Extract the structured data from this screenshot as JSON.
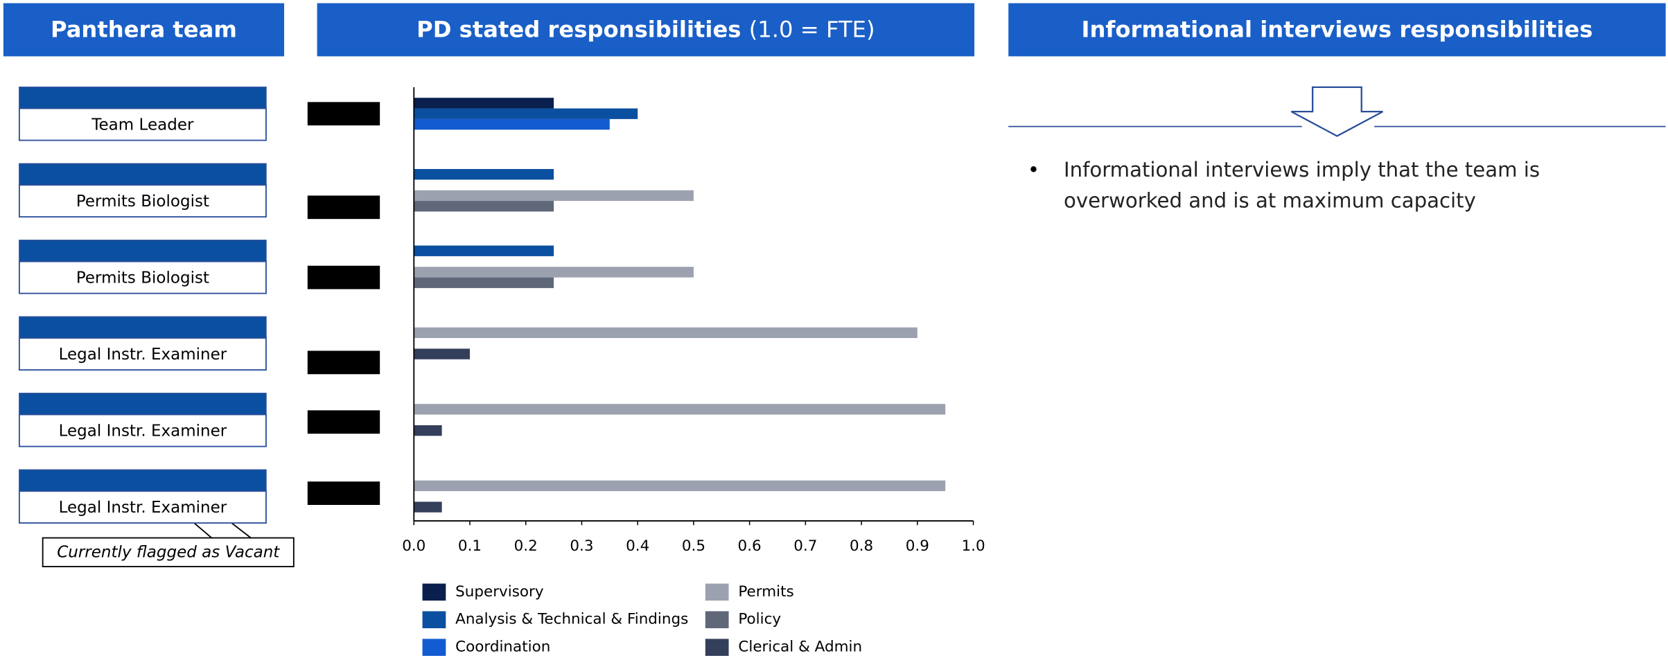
{
  "headers": [
    "Panthera team",
    "Informational interviews responsibilities"
  ],
  "callout": "Currently flagged as Vacant",
  "bullets": [
    "Informational interviews imply that the team is overworked and is at maximum capacity"
  ],
  "chart_data": {
    "type": "barh",
    "title": "PD stated responsibilities",
    "subtitle": "(1.0 = FTE)",
    "categories": [
      "Team Leader",
      "Permits Biologist",
      "Permits Biologist",
      "Legal Instr. Examiner",
      "Legal Instr. Examiner",
      "Legal Instr. Examiner"
    ],
    "series": [
      {
        "name": "Supervisory",
        "color": "#0a1f4d",
        "values": [
          0.25,
          null,
          null,
          null,
          null,
          null
        ]
      },
      {
        "name": "Analysis & Technical & Findings",
        "color": "#0b4fa0",
        "values": [
          0.4,
          0.25,
          0.25,
          null,
          null,
          null
        ]
      },
      {
        "name": "Coordination",
        "color": "#135bd1",
        "values": [
          0.35,
          null,
          null,
          null,
          null,
          null
        ]
      },
      {
        "name": "Permits",
        "color": "#9ba1ae",
        "values": [
          null,
          0.5,
          0.5,
          0.9,
          0.95,
          0.95
        ]
      },
      {
        "name": "Policy",
        "color": "#5f6779",
        "values": [
          null,
          0.25,
          0.25,
          null,
          null,
          null
        ]
      },
      {
        "name": "Clerical & Admin",
        "color": "#343f5b",
        "values": [
          null,
          null,
          null,
          0.1,
          0.05,
          0.05
        ]
      }
    ],
    "xlim": [
      0,
      1
    ],
    "xticks": [
      {
        "value": 0,
        "label": "0.0"
      },
      0.1,
      0.2,
      0.3,
      0.4,
      0.5,
      0.6,
      0.7,
      0.8,
      0.9,
      {
        "value": 1,
        "label": "1.0"
      }
    ]
  }
}
